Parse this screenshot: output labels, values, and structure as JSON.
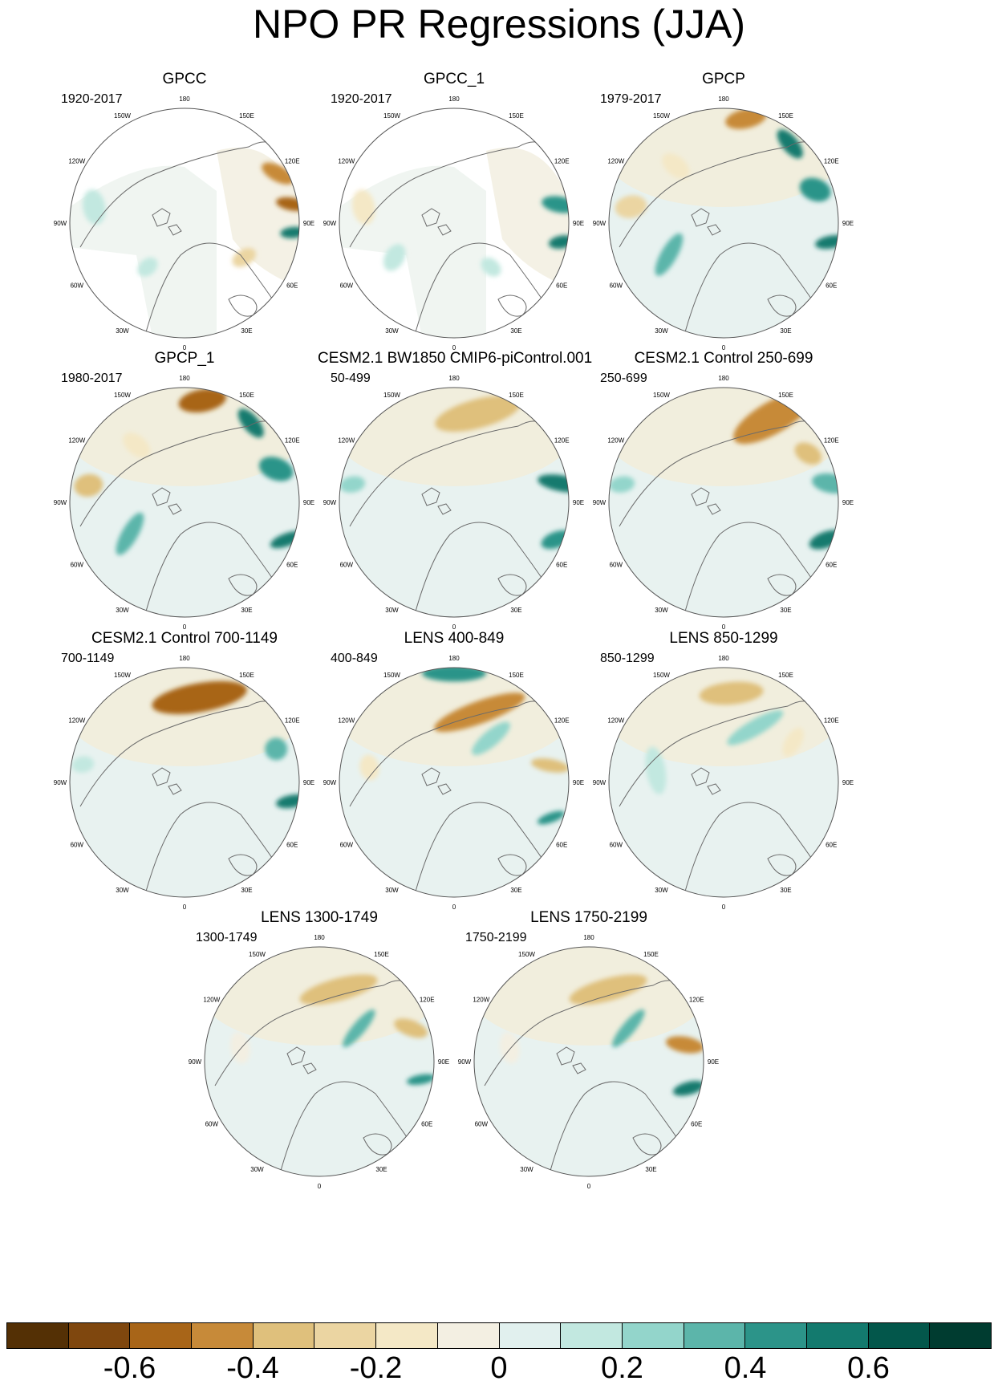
{
  "title": "NPO PR Regressions (JJA)",
  "map_labels": {
    "n180": "180",
    "w150": "150W",
    "e150": "150E",
    "w120": "120W",
    "e120": "120E",
    "w90": "90W",
    "e90": "90E",
    "w60": "60W",
    "e60": "60E",
    "w30": "30W",
    "e30": "30E",
    "s0": "0"
  },
  "panels": [
    {
      "title": "GPCC",
      "period": "1920-2017"
    },
    {
      "title": "GPCC_1",
      "period": "1920-2017"
    },
    {
      "title": "GPCP",
      "period": "1979-2017"
    },
    {
      "title": "GPCP_1",
      "period": "1980-2017"
    },
    {
      "title": "CESM2.1 BW1850 CMIP6-piControl.001",
      "period": "50-499"
    },
    {
      "title": "CESM2.1 Control 250-699",
      "period": "250-699"
    },
    {
      "title": "CESM2.1 Control 700-1149",
      "period": "700-1149"
    },
    {
      "title": "LENS 400-849",
      "period": "400-849"
    },
    {
      "title": "LENS 850-1299",
      "period": "850-1299"
    },
    {
      "title": "LENS 1300-1749",
      "period": "1300-1749"
    },
    {
      "title": "LENS 1750-2199",
      "period": "1750-2199"
    }
  ],
  "colorbar": {
    "colors": [
      "#543005",
      "#7f470e",
      "#a86518",
      "#c78a39",
      "#dfc07c",
      "#ebd5a2",
      "#f4e8c6",
      "#f3efe2",
      "#e1f0ee",
      "#c2e8e0",
      "#93d5cb",
      "#5cb5aa",
      "#2c9489",
      "#137a6e",
      "#03574b",
      "#003c30"
    ],
    "ticks": [
      {
        "label": "-0.6",
        "level": -0.6
      },
      {
        "label": "-0.4",
        "level": -0.4
      },
      {
        "label": "-0.2",
        "level": -0.2
      },
      {
        "label": "0",
        "level": 0
      },
      {
        "label": "0.2",
        "level": 0.2
      },
      {
        "label": "0.4",
        "level": 0.4
      },
      {
        "label": "0.6",
        "level": 0.6
      }
    ],
    "min": -0.8,
    "max": 0.8
  }
}
